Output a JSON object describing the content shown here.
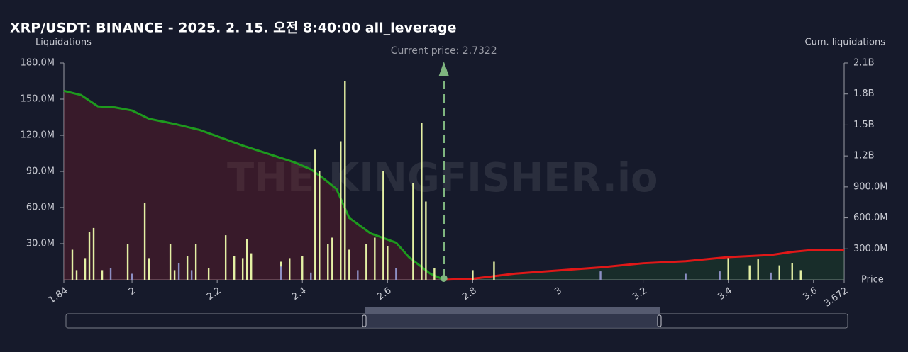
{
  "chart_data": {
    "type": "bar",
    "title": "XRP/USDT: BINANCE - 2025. 2. 15. 오전 8:40:00 all_leverage",
    "y_label": "Liquidations",
    "y2_label": "Cum. liquidations",
    "x_label": "Price",
    "annotation": "Current price: 2.7322",
    "current_price": 2.7322,
    "watermark": "THE KINGFISHER.io",
    "grid": false,
    "xlim": [
      1.84,
      3.672
    ],
    "xticks": [
      1.84,
      2,
      2.2,
      2.4,
      2.6,
      2.8,
      3,
      3.2,
      3.4,
      3.6,
      3.672
    ],
    "ylim": [
      0,
      180000000
    ],
    "yticks": [
      {
        "value": 30000000,
        "label": "30.0M"
      },
      {
        "value": 60000000,
        "label": "60.0M"
      },
      {
        "value": 90000000,
        "label": "90.0M"
      },
      {
        "value": 120000000,
        "label": "120.0M"
      },
      {
        "value": 150000000,
        "label": "150.0M"
      },
      {
        "value": 180000000,
        "label": "180.0M"
      }
    ],
    "y2lim": [
      0,
      2100000000
    ],
    "y2ticks": [
      {
        "value": 300000000,
        "label": "300.0M"
      },
      {
        "value": 600000000,
        "label": "600.0M"
      },
      {
        "value": 900000000,
        "label": "900.0M"
      },
      {
        "value": 1200000000,
        "label": "1.2B"
      },
      {
        "value": 1500000000,
        "label": "1.5B"
      },
      {
        "value": 1800000000,
        "label": "1.8B"
      },
      {
        "value": 2100000000,
        "label": "2.1B"
      }
    ],
    "series": [
      {
        "type": "bar",
        "color": "#e4f0a4",
        "x": [
          1.86,
          1.87,
          1.89,
          1.9,
          1.91,
          1.93,
          1.99,
          2.03,
          2.04,
          2.09,
          2.1,
          2.13,
          2.15,
          2.18,
          2.22,
          2.24,
          2.26,
          2.27,
          2.28,
          2.35,
          2.37,
          2.4,
          2.43,
          2.44,
          2.46,
          2.47,
          2.49,
          2.5,
          2.51,
          2.55,
          2.57,
          2.59,
          2.6,
          2.66,
          2.68,
          2.69,
          2.71,
          2.8,
          2.85,
          3.4,
          3.45,
          3.47,
          3.52,
          3.55,
          3.57
        ],
        "values": [
          25000000,
          8000000,
          18000000,
          40000000,
          43000000,
          8000000,
          30000000,
          64000000,
          18000000,
          30000000,
          8000000,
          20000000,
          30000000,
          10000000,
          37000000,
          20000000,
          18000000,
          34000000,
          22000000,
          15000000,
          18000000,
          20000000,
          108000000,
          90000000,
          30000000,
          35000000,
          115000000,
          165000000,
          25000000,
          30000000,
          35000000,
          90000000,
          28000000,
          80000000,
          130000000,
          65000000,
          10000000,
          8000000,
          15000000,
          18000000,
          12000000,
          17000000,
          12000000,
          14000000,
          8000000
        ]
      },
      {
        "type": "bar",
        "color": "#8c8fc4",
        "x": [
          1.95,
          2.0,
          2.11,
          2.14,
          2.35,
          2.42,
          2.53,
          2.62,
          3.1,
          3.3,
          3.38,
          3.5
        ],
        "values": [
          10000000,
          5000000,
          14000000,
          8000000,
          11000000,
          6000000,
          8000000,
          10000000,
          7000000,
          5000000,
          7000000,
          6000000
        ]
      },
      {
        "type": "line",
        "axis": "y2",
        "color": "#1e9a1e",
        "area": "rgba(120,30,40,0.35)",
        "x": [
          1.84,
          1.88,
          1.92,
          1.96,
          2.0,
          2.04,
          2.1,
          2.16,
          2.2,
          2.26,
          2.32,
          2.38,
          2.42,
          2.45,
          2.48,
          2.51,
          2.56,
          2.62,
          2.65,
          2.7,
          2.7322
        ],
        "values": [
          1830000000,
          1790000000,
          1680000000,
          1670000000,
          1640000000,
          1560000000,
          1510000000,
          1450000000,
          1390000000,
          1300000000,
          1220000000,
          1140000000,
          1070000000,
          980000000,
          880000000,
          600000000,
          450000000,
          360000000,
          220000000,
          60000000,
          0
        ]
      },
      {
        "type": "line",
        "axis": "y2",
        "color": "#e01818",
        "area": "rgba(30,90,40,0.3)",
        "x": [
          2.7322,
          2.8,
          2.9,
          3.0,
          3.1,
          3.2,
          3.3,
          3.4,
          3.5,
          3.55,
          3.6,
          3.672
        ],
        "values": [
          0,
          10000000,
          60000000,
          90000000,
          120000000,
          160000000,
          180000000,
          220000000,
          240000000,
          270000000,
          290000000,
          290000000
        ]
      }
    ]
  }
}
